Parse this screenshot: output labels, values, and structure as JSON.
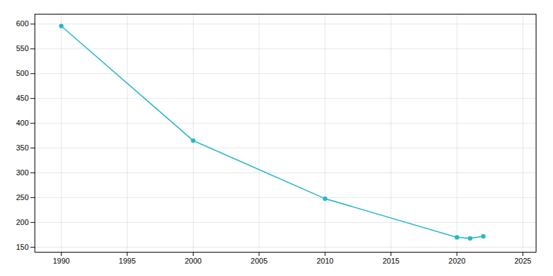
{
  "chart_data": {
    "type": "line",
    "x": [
      1990,
      2000,
      2010,
      2020,
      2021,
      2022
    ],
    "values": [
      596,
      365,
      248,
      170,
      168,
      172
    ],
    "color": "#29b6c8",
    "marker": "circle",
    "xlim": [
      1988,
      2026
    ],
    "ylim": [
      140,
      620
    ],
    "xticks": [
      1990,
      1995,
      2000,
      2005,
      2010,
      2015,
      2020,
      2025
    ],
    "yticks": [
      150,
      200,
      250,
      300,
      350,
      400,
      450,
      500,
      550,
      600
    ],
    "grid": true
  }
}
